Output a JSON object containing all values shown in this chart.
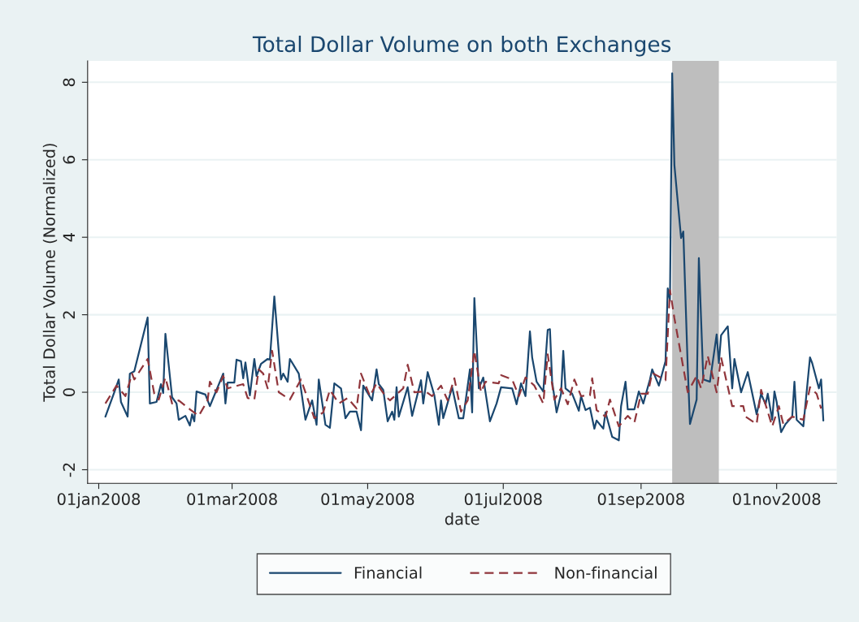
{
  "chart_data": {
    "type": "line",
    "title": "Total Dollar Volume on both Exchanges",
    "xlabel": "date",
    "ylabel": "Total Dollar Volume (Normalized)",
    "xlim": [
      "2007-12-27",
      "2008-11-28"
    ],
    "xticks": [
      {
        "value": "2008-01-01",
        "label": "01jan2008"
      },
      {
        "value": "2008-03-01",
        "label": "01mar2008"
      },
      {
        "value": "2008-05-01",
        "label": "01may2008"
      },
      {
        "value": "2008-07-01",
        "label": "01jul2008"
      },
      {
        "value": "2008-09-01",
        "label": "01sep2008"
      },
      {
        "value": "2008-11-01",
        "label": "01nov2008"
      }
    ],
    "ylim": [
      -2.35,
      8.55
    ],
    "yticks": [
      -2,
      0,
      2,
      4,
      6,
      8
    ],
    "grid": "y",
    "legend": "bottom",
    "bands": [
      {
        "axis": "x",
        "from": "2008-09-15",
        "to": "2008-10-06",
        "color": "#bebebe"
      }
    ],
    "series": [
      {
        "name": "Financial",
        "color": "#1a476f",
        "line_style": "solid",
        "x": [
          "2008-01-04",
          "2008-01-08",
          "2008-01-10",
          "2008-01-11",
          "2008-01-14",
          "2008-01-15",
          "2008-01-17",
          "2008-01-23",
          "2008-01-24",
          "2008-01-27",
          "2008-01-29",
          "2008-01-30",
          "2008-01-31",
          "2008-02-03",
          "2008-02-05",
          "2008-02-06",
          "2008-02-09",
          "2008-02-11",
          "2008-02-12",
          "2008-02-13",
          "2008-02-14",
          "2008-02-18",
          "2008-02-20",
          "2008-02-26",
          "2008-02-27",
          "2008-02-28",
          "2008-03-02",
          "2008-03-03",
          "2008-03-05",
          "2008-03-06",
          "2008-03-07",
          "2008-03-09",
          "2008-03-11",
          "2008-03-12",
          "2008-03-14",
          "2008-03-17",
          "2008-03-18",
          "2008-03-20",
          "2008-03-23",
          "2008-03-24",
          "2008-03-26",
          "2008-03-27",
          "2008-03-31",
          "2008-04-03",
          "2008-04-06",
          "2008-04-08",
          "2008-04-09",
          "2008-04-12",
          "2008-04-14",
          "2008-04-16",
          "2008-04-19",
          "2008-04-21",
          "2008-04-23",
          "2008-04-26",
          "2008-04-28",
          "2008-04-29",
          "2008-05-03",
          "2008-05-05",
          "2008-05-06",
          "2008-05-08",
          "2008-05-10",
          "2008-05-12",
          "2008-05-13",
          "2008-05-14",
          "2008-05-15",
          "2008-05-19",
          "2008-05-21",
          "2008-05-25",
          "2008-05-26",
          "2008-05-28",
          "2008-05-31",
          "2008-06-02",
          "2008-06-03",
          "2008-06-04",
          "2008-06-08",
          "2008-06-11",
          "2008-06-13",
          "2008-06-16",
          "2008-06-17",
          "2008-06-18",
          "2008-06-20",
          "2008-06-22",
          "2008-06-25",
          "2008-06-28",
          "2008-06-30",
          "2008-07-05",
          "2008-07-07",
          "2008-07-09",
          "2008-07-11",
          "2008-07-13",
          "2008-07-14",
          "2008-07-16",
          "2008-07-19",
          "2008-07-21",
          "2008-07-22",
          "2008-07-23",
          "2008-07-25",
          "2008-07-27",
          "2008-07-28",
          "2008-07-29",
          "2008-08-01",
          "2008-08-04",
          "2008-08-05",
          "2008-08-07",
          "2008-08-09",
          "2008-08-11",
          "2008-08-12",
          "2008-08-15",
          "2008-08-16",
          "2008-08-19",
          "2008-08-22",
          "2008-08-23",
          "2008-08-25",
          "2008-08-26",
          "2008-08-29",
          "2008-08-31",
          "2008-09-02",
          "2008-09-05",
          "2008-09-06",
          "2008-09-09",
          "2008-09-12",
          "2008-09-13",
          "2008-09-14",
          "2008-09-15",
          "2008-09-16",
          "2008-09-19",
          "2008-09-20",
          "2008-09-22",
          "2008-09-23",
          "2008-09-26",
          "2008-09-27",
          "2008-09-29",
          "2008-10-02",
          "2008-10-05",
          "2008-10-06",
          "2008-10-07",
          "2008-10-10",
          "2008-10-12",
          "2008-10-13",
          "2008-10-16",
          "2008-10-19",
          "2008-10-23",
          "2008-10-25",
          "2008-10-27",
          "2008-10-28",
          "2008-10-30",
          "2008-10-31",
          "2008-11-01",
          "2008-11-03",
          "2008-11-05",
          "2008-11-08",
          "2008-11-09",
          "2008-11-10",
          "2008-11-13",
          "2008-11-16",
          "2008-11-17",
          "2008-11-20",
          "2008-11-21",
          "2008-11-22"
        ],
        "values": [
          -0.63,
          0,
          0.33,
          -0.25,
          -0.63,
          0.48,
          0.54,
          1.93,
          -0.29,
          -0.25,
          0.21,
          -0.02,
          1.51,
          -0.13,
          -0.29,
          -0.71,
          -0.61,
          -0.86,
          -0.57,
          -0.75,
          0.02,
          -0.06,
          -0.36,
          0.48,
          -0.29,
          0.25,
          0.25,
          0.84,
          0.8,
          0.36,
          0.77,
          -0.08,
          0.86,
          0.42,
          0.73,
          0.86,
          0.84,
          2.47,
          0.33,
          0.48,
          0.27,
          0.86,
          0.48,
          -0.71,
          -0.21,
          -0.84,
          0.33,
          -0.84,
          -0.92,
          0.23,
          0.1,
          -0.67,
          -0.5,
          -0.5,
          -0.98,
          0.17,
          -0.21,
          0.59,
          0.21,
          0.06,
          -0.75,
          -0.5,
          -0.71,
          0.13,
          -0.63,
          0.13,
          -0.61,
          0.31,
          -0.29,
          0.52,
          -0.08,
          -0.84,
          -0.21,
          -0.67,
          0.13,
          -0.67,
          -0.67,
          0.59,
          -0.52,
          2.43,
          0.1,
          0.38,
          -0.75,
          -0.29,
          0.13,
          0.1,
          -0.31,
          0.23,
          -0.1,
          1.57,
          0.9,
          0.27,
          0.02,
          1.61,
          1.63,
          0.27,
          -0.52,
          -0.04,
          1.07,
          0.1,
          -0.04,
          -0.48,
          -0.1,
          -0.46,
          -0.4,
          -0.94,
          -0.73,
          -0.94,
          -0.52,
          -1.15,
          -1.24,
          -0.36,
          0.27,
          -0.44,
          -0.44,
          0.02,
          -0.29,
          0.33,
          0.59,
          0.17,
          0.8,
          2.68,
          2.37,
          8.23,
          5.86,
          3.98,
          4.15,
          0.63,
          -0.82,
          -0.19,
          3.46,
          0.33,
          0.27,
          1.49,
          0.75,
          1.47,
          1.7,
          0.1,
          0.86,
          0,
          0.52,
          -0.57,
          -0.04,
          -0.31,
          -0.04,
          -0.71,
          0.02,
          -0.25,
          -1.03,
          -0.82,
          -0.63,
          0.27,
          -0.71,
          -0.88,
          0.9,
          0.75,
          0.1,
          0.33,
          -0.73
        ]
      },
      {
        "name": "Non-financial",
        "color": "#90353b",
        "line_style": "dashed",
        "x": [
          "2008-01-04",
          "2008-01-09",
          "2008-01-13",
          "2008-01-16",
          "2008-01-17",
          "2008-01-23",
          "2008-01-26",
          "2008-01-28",
          "2008-01-31",
          "2008-02-03",
          "2008-02-06",
          "2008-02-11",
          "2008-02-15",
          "2008-02-19",
          "2008-02-20",
          "2008-02-23",
          "2008-02-26",
          "2008-02-28",
          "2008-03-06",
          "2008-03-08",
          "2008-03-11",
          "2008-03-13",
          "2008-03-15",
          "2008-03-17",
          "2008-03-19",
          "2008-03-22",
          "2008-03-27",
          "2008-04-01",
          "2008-04-07",
          "2008-04-11",
          "2008-04-14",
          "2008-04-18",
          "2008-04-22",
          "2008-04-26",
          "2008-04-28",
          "2008-05-02",
          "2008-05-05",
          "2008-05-09",
          "2008-05-11",
          "2008-05-17",
          "2008-05-19",
          "2008-05-22",
          "2008-05-27",
          "2008-05-30",
          "2008-06-03",
          "2008-06-06",
          "2008-06-09",
          "2008-06-12",
          "2008-06-15",
          "2008-06-18",
          "2008-06-21",
          "2008-06-23",
          "2008-06-29",
          "2008-06-30",
          "2008-07-05",
          "2008-07-08",
          "2008-07-11",
          "2008-07-15",
          "2008-07-19",
          "2008-07-21",
          "2008-07-24",
          "2008-07-27",
          "2008-07-30",
          "2008-08-02",
          "2008-08-05",
          "2008-08-09",
          "2008-08-10",
          "2008-08-12",
          "2008-08-16",
          "2008-08-18",
          "2008-08-22",
          "2008-08-26",
          "2008-08-29",
          "2008-09-01",
          "2008-09-04",
          "2008-09-06",
          "2008-09-12",
          "2008-09-14",
          "2008-09-16",
          "2008-09-22",
          "2008-09-26",
          "2008-09-28",
          "2008-10-01",
          "2008-10-05",
          "2008-10-07",
          "2008-10-12",
          "2008-10-17",
          "2008-10-18",
          "2008-10-23",
          "2008-10-25",
          "2008-10-30",
          "2008-11-02",
          "2008-11-04",
          "2008-11-08",
          "2008-11-13",
          "2008-11-16",
          "2008-11-19",
          "2008-11-21"
        ],
        "values": [
          -0.29,
          0.17,
          -0.1,
          0.48,
          0.33,
          0.86,
          -0.04,
          -0.19,
          0.38,
          -0.29,
          -0.21,
          -0.44,
          -0.61,
          -0.21,
          0.27,
          0,
          0.42,
          0.1,
          0.21,
          -0.15,
          -0.19,
          0.59,
          0.48,
          0.1,
          1.07,
          0,
          -0.19,
          0.33,
          -0.67,
          -0.52,
          0.06,
          -0.29,
          -0.15,
          -0.42,
          0.48,
          -0.1,
          0.23,
          -0.1,
          -0.21,
          0.1,
          0.71,
          0,
          0.02,
          -0.1,
          0.17,
          -0.21,
          0.36,
          -0.5,
          -0.21,
          1.07,
          0,
          0.27,
          0.23,
          0.44,
          0.33,
          -0.1,
          0.38,
          0.17,
          -0.29,
          0.98,
          -0.19,
          0.1,
          -0.31,
          0.33,
          -0.1,
          -0.08,
          0.36,
          -0.46,
          -0.63,
          -0.19,
          -0.88,
          -0.61,
          -0.78,
          -0.04,
          -0.04,
          0.5,
          0.31,
          2.64,
          1.91,
          0,
          0.42,
          0.1,
          0.94,
          0,
          0.9,
          -0.36,
          -0.36,
          -0.63,
          -0.82,
          0.06,
          -0.88,
          -0.36,
          -0.82,
          -0.63,
          -0.71,
          0.13,
          -0.04,
          -0.42
        ]
      }
    ]
  }
}
